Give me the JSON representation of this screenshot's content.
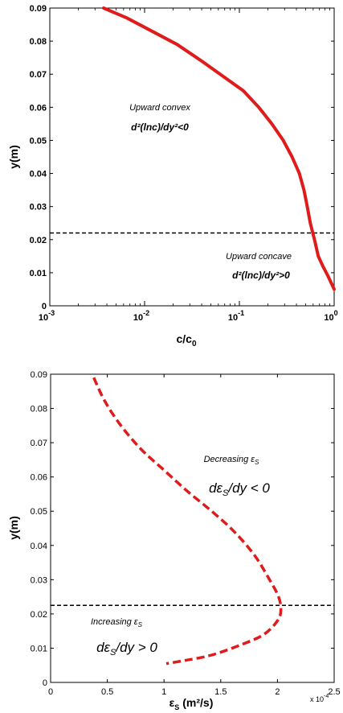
{
  "chart_data": [
    {
      "type": "line",
      "xscale": "log",
      "xlim": [
        0.001,
        1
      ],
      "ylim": [
        0,
        0.09
      ],
      "xlabel": "c/c",
      "xlabel_sub": "0",
      "ylabel": "y(m)",
      "xticks": [
        {
          "value": 0.001,
          "base": "10",
          "exp": "-3"
        },
        {
          "value": 0.01,
          "base": "10",
          "exp": "-2"
        },
        {
          "value": 0.1,
          "base": "10",
          "exp": "-1"
        },
        {
          "value": 1,
          "base": "10",
          "exp": "0"
        }
      ],
      "yticks": [
        "0",
        "0.01",
        "0.02",
        "0.03",
        "0.04",
        "0.05",
        "0.06",
        "0.07",
        "0.08",
        "0.09"
      ],
      "series": [
        {
          "color": "#e01b1b",
          "style": "solid",
          "x": [
            0.0037,
            0.0065,
            0.012,
            0.022,
            0.04,
            0.07,
            0.11,
            0.16,
            0.22,
            0.29,
            0.36,
            0.43,
            0.48,
            0.52,
            0.56,
            0.62,
            0.68,
            0.76,
            0.86,
            1.0
          ],
          "y": [
            0.09,
            0.087,
            0.083,
            0.079,
            0.074,
            0.069,
            0.065,
            0.06,
            0.055,
            0.05,
            0.045,
            0.04,
            0.035,
            0.03,
            0.025,
            0.02,
            0.015,
            0.012,
            0.009,
            0.005
          ]
        }
      ],
      "hline": {
        "y": 0.022,
        "color": "#000000",
        "style": "dashed"
      },
      "annotations": {
        "upper_title": "Upward convex",
        "upper_eq": "d²(lnc)/dy²<0",
        "lower_title": "Upward concave",
        "lower_eq": "d²(lnc)/dy²>0"
      }
    },
    {
      "type": "line",
      "xlim": [
        0,
        2.5
      ],
      "ylim": [
        0,
        0.09
      ],
      "xlabel": "ε",
      "xlabel_sub": "S",
      "xlabel_unit": "(m²/s)",
      "ylabel": "y(m)",
      "x_multiplier": {
        "base": "x 10",
        "exp": "-4"
      },
      "xticks": [
        "0",
        "0.5",
        "1",
        "1.5",
        "2",
        "2.5"
      ],
      "yticks": [
        "0",
        "0.01",
        "0.02",
        "0.03",
        "0.04",
        "0.05",
        "0.06",
        "0.07",
        "0.08",
        "0.09"
      ],
      "series": [
        {
          "color": "#e01b1b",
          "style": "dashed",
          "x": [
            0.38,
            0.48,
            0.62,
            0.8,
            1.0,
            1.2,
            1.42,
            1.62,
            1.8,
            1.93,
            2.01,
            2.03,
            2.0,
            1.88,
            1.68,
            1.42,
            1.2,
            1.02
          ],
          "y": [
            0.089,
            0.082,
            0.075,
            0.068,
            0.062,
            0.056,
            0.05,
            0.044,
            0.037,
            0.03,
            0.025,
            0.021,
            0.018,
            0.014,
            0.011,
            0.008,
            0.0065,
            0.0055
          ]
        }
      ],
      "hline": {
        "y": 0.0225,
        "color": "#000000",
        "style": "dashed"
      },
      "annotations": {
        "upper_title": "Decreasing ε",
        "upper_title_sub": "S",
        "upper_eq_a": "dε",
        "upper_eq_sub": "S",
        "upper_eq_b": "/dy < 0",
        "lower_title": "Increasing ε",
        "lower_title_sub": "S",
        "lower_eq_a": "dε",
        "lower_eq_sub": "S",
        "lower_eq_b": "/dy > 0"
      }
    }
  ]
}
